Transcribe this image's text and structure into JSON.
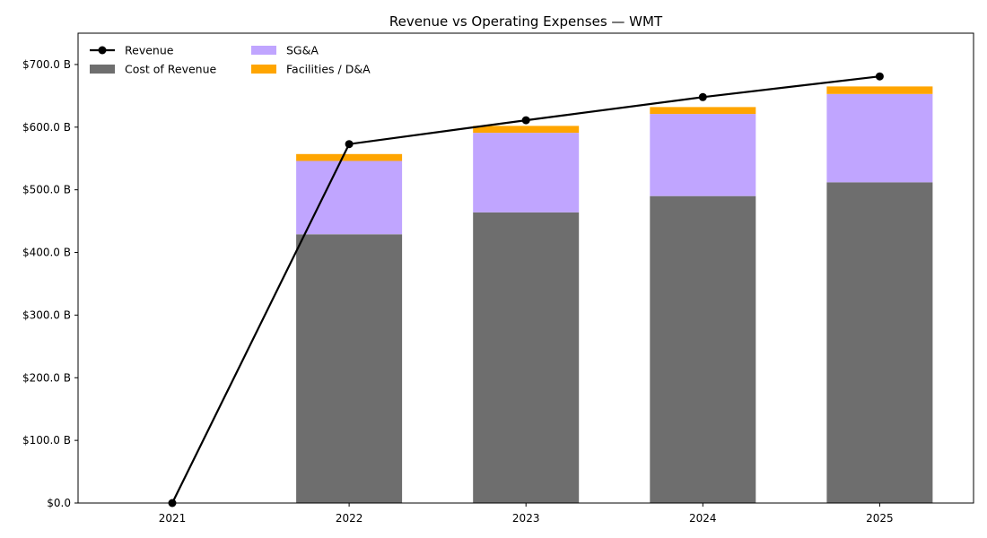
{
  "chart_data": {
    "type": "bar",
    "title": "Revenue vs Operating Expenses — WMT",
    "xlabel": "",
    "ylabel": "",
    "categories": [
      "2021",
      "2022",
      "2023",
      "2024",
      "2025"
    ],
    "ylim": [
      0,
      750
    ],
    "yticks": [
      0,
      100,
      200,
      300,
      400,
      500,
      600,
      700
    ],
    "ytick_labels": [
      "$0.0",
      "$100.0 B",
      "$200.0 B",
      "$300.0 B",
      "$400.0 B",
      "$500.0 B",
      "$600.0 B",
      "$700.0 B"
    ],
    "grid": false,
    "legend_position": "top-left",
    "stacked_series": [
      {
        "name": "Cost of Revenue",
        "color": "#6e6e6e",
        "values": [
          0,
          429,
          464,
          490,
          512
        ]
      },
      {
        "name": "SG&A",
        "color": "#c0a5ff",
        "values": [
          0,
          117,
          127,
          131,
          141
        ]
      },
      {
        "name": "Facilities / D&A",
        "color": "#ffa500",
        "values": [
          0,
          11,
          11,
          11,
          12
        ]
      }
    ],
    "line_series": {
      "name": "Revenue",
      "color": "#000000",
      "values": [
        0,
        573,
        611,
        648,
        681
      ]
    }
  }
}
